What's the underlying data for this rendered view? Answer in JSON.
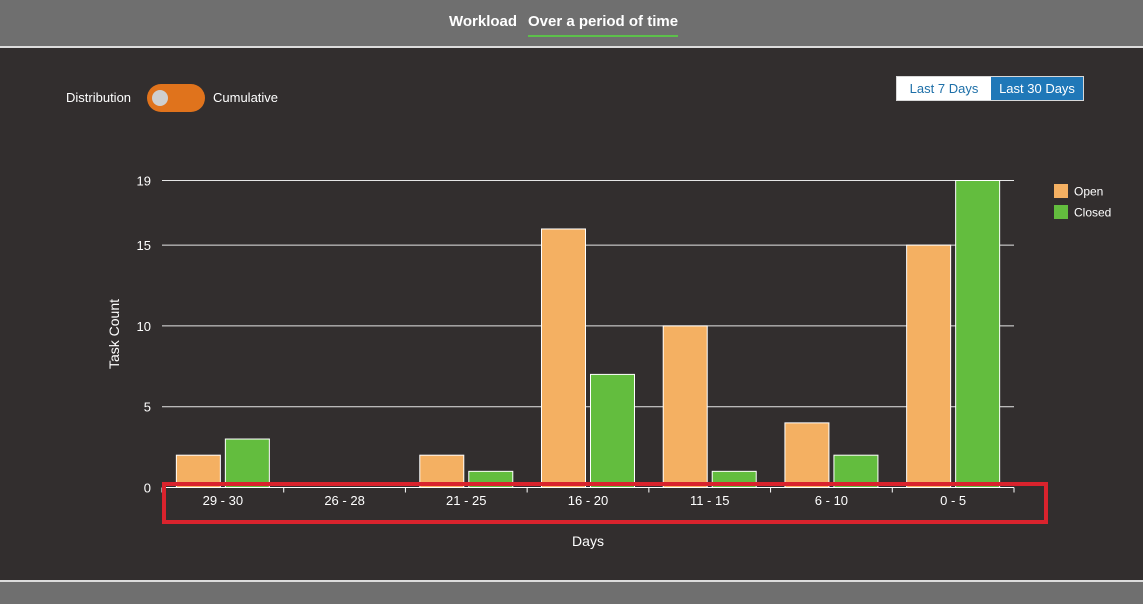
{
  "tabs": [
    {
      "label": "Workload",
      "active": false
    },
    {
      "label": "Over a period of time",
      "active": true
    }
  ],
  "toggle": {
    "left_label": "Distribution",
    "right_label": "Cumulative",
    "color": "#e0731c"
  },
  "range_buttons": [
    {
      "label": "Last 7 Days",
      "active": false
    },
    {
      "label": "Last 30 Days",
      "active": true
    }
  ],
  "chart_data": {
    "type": "bar",
    "categories": [
      "29 - 30",
      "26 - 28",
      "21 - 25",
      "16 - 20",
      "11 - 15",
      "6 - 10",
      "0 - 5"
    ],
    "series": [
      {
        "name": "Open",
        "color": "#f4b062",
        "values": [
          2,
          0,
          2,
          16,
          10,
          4,
          15
        ]
      },
      {
        "name": "Closed",
        "color": "#63bd3e",
        "values": [
          3,
          0,
          1,
          7,
          1,
          2,
          19
        ]
      }
    ],
    "xlabel": "Days",
    "ylabel": "Task Count",
    "yticks": [
      0,
      5,
      10,
      15,
      19
    ],
    "ylim": [
      0,
      19
    ],
    "grid": true,
    "legend_position": "top-right"
  }
}
